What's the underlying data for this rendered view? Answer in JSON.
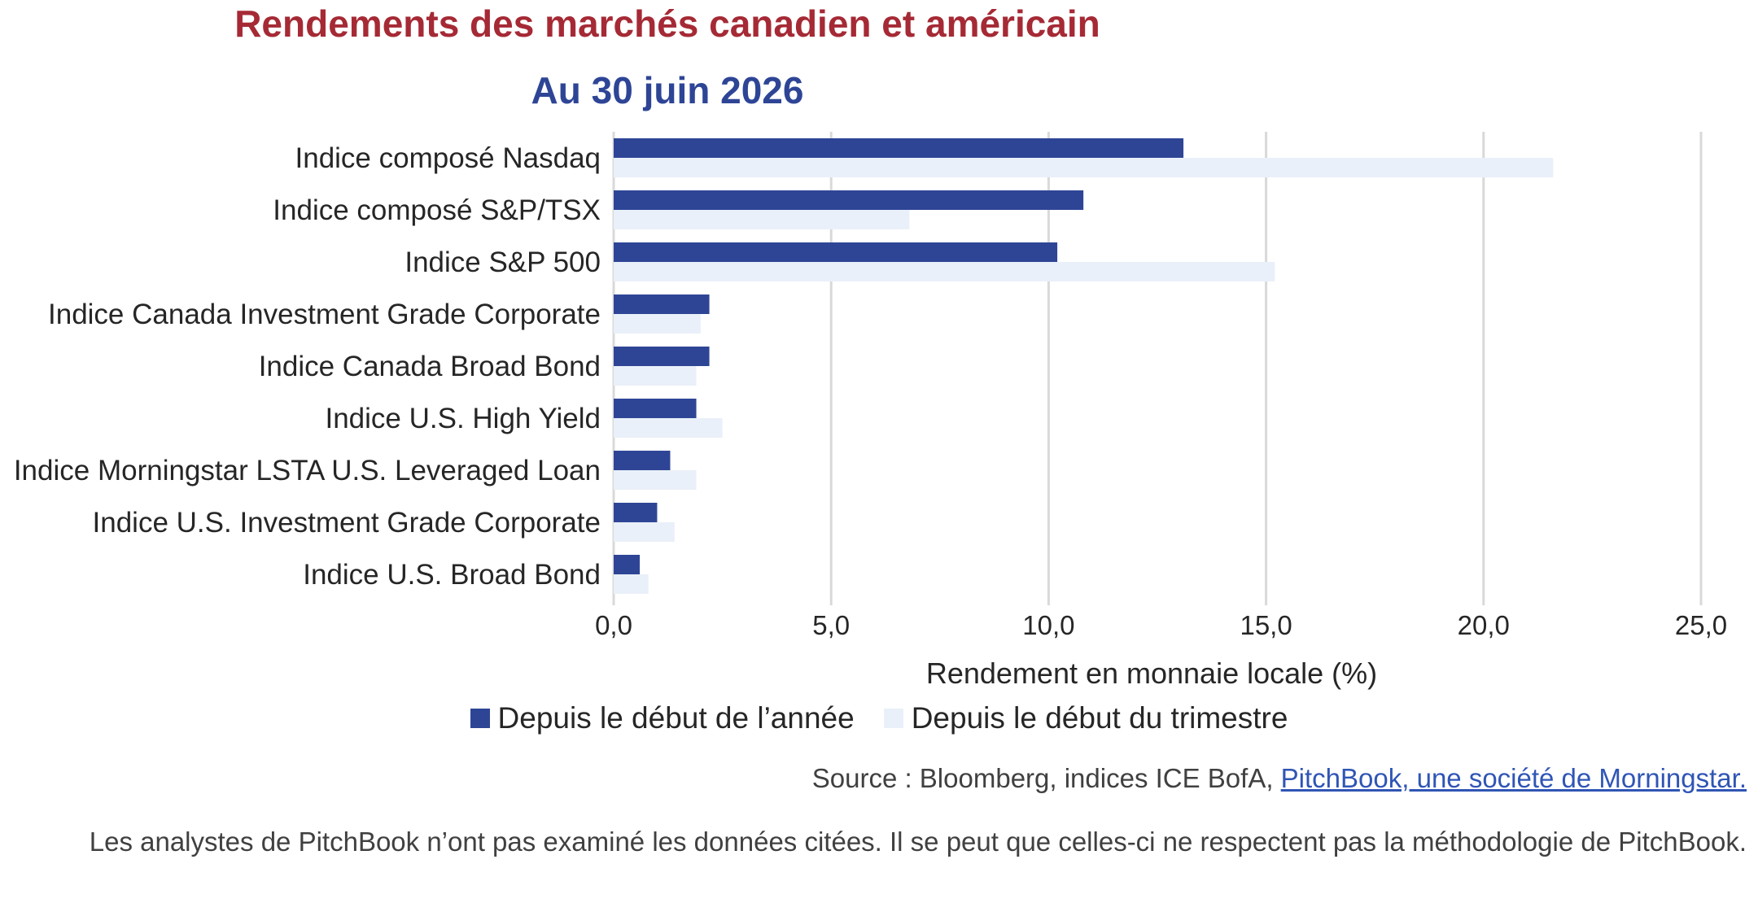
{
  "chart_data": {
    "type": "bar",
    "orientation": "horizontal",
    "title": "Rendements des marchés canadien et américain",
    "subtitle": "Au 30 juin 2026",
    "xlabel": "Rendement en monnaie locale (%)",
    "ylabel": "",
    "xlim": [
      0,
      25
    ],
    "xticks": [
      "0,0",
      "5,0",
      "10,0",
      "15,0",
      "20,0",
      "25,0"
    ],
    "grid": true,
    "legend_position": "bottom",
    "categories": [
      "Indice composé Nasdaq",
      "Indice composé S&P/TSX",
      "Indice S&P 500",
      "Indice Canada Investment Grade Corporate",
      "Indice Canada Broad Bond",
      "Indice U.S. High Yield",
      "Indice Morningstar LSTA U.S. Leveraged Loan",
      "Indice U.S. Investment Grade Corporate",
      "Indice U.S. Broad Bond"
    ],
    "series": [
      {
        "name": "Depuis le début de l’année",
        "color": "#2e4596",
        "values": [
          13.1,
          10.8,
          10.2,
          2.2,
          2.2,
          1.9,
          1.3,
          1.0,
          0.6
        ]
      },
      {
        "name": "Depuis le début du trimestre",
        "color": "#eaf0f9",
        "values": [
          21.6,
          6.8,
          15.2,
          2.0,
          1.9,
          2.5,
          1.9,
          1.4,
          0.8
        ]
      }
    ]
  },
  "source": {
    "prefix": "Source : Bloomberg, indices ICE BofA, ",
    "link_text": "PitchBook, une société de Morningstar."
  },
  "note": "Les analystes de PitchBook n’ont pas examiné les données citées. Il se peut que celles-ci ne respectent pas la méthodologie de PitchBook."
}
